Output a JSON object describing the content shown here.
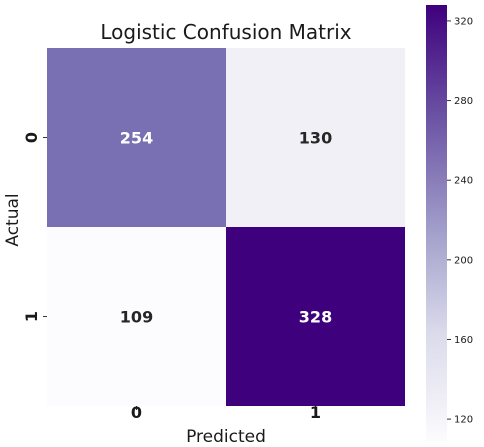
{
  "chart_data": {
    "type": "heatmap",
    "title": "Logistic Confusion Matrix",
    "xlabel": "Predicted",
    "ylabel": "Actual",
    "x_categories": [
      "0",
      "1"
    ],
    "y_categories": [
      "0",
      "1"
    ],
    "values": [
      [
        254,
        130
      ],
      [
        109,
        328
      ]
    ],
    "colormap": "Purples",
    "vmin": 109,
    "vmax": 328,
    "colorbar_ticks": [
      120,
      160,
      200,
      240,
      280,
      320
    ],
    "annotation_color_light_cells": "#262626",
    "annotation_color_dark_cells": "#ffffff"
  }
}
